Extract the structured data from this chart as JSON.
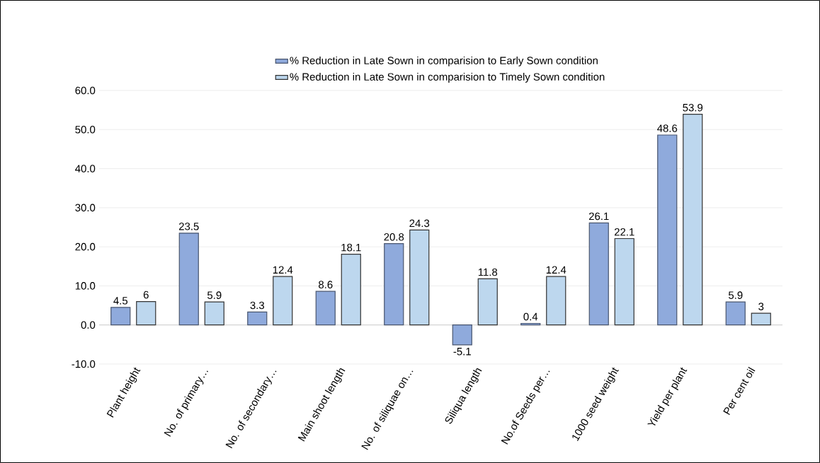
{
  "chart_data": {
    "type": "bar",
    "categories": [
      "Plant height",
      "No. of primary…",
      "No. of secondary…",
      "Main shoot length",
      "No. of siliquae on…",
      "Siliqua length",
      "No.of Seeds per…",
      "1000 seed weight",
      "Yield per plant",
      "Per cent oil"
    ],
    "series": [
      {
        "name": "% Reduction in Late Sown in comparision to Early Sown condition",
        "color": "#8faadc",
        "values": [
          4.5,
          23.5,
          3.3,
          8.6,
          20.8,
          -5.1,
          0.4,
          26.1,
          48.6,
          5.9
        ],
        "value_labels": [
          "4.5",
          "23.5",
          "3.3",
          "8.6",
          "20.8",
          "-5.1",
          "0.4",
          "26.1",
          "48.6",
          "5.9"
        ]
      },
      {
        "name": "% Reduction in Late Sown in comparision to Timely Sown condition",
        "color": "#bdd7ee",
        "values": [
          6,
          5.9,
          12.4,
          18.1,
          24.3,
          11.8,
          12.4,
          22.1,
          53.9,
          3
        ],
        "value_labels": [
          "6",
          "5.9",
          "12.4",
          "18.1",
          "24.3",
          "11.8",
          "12.4",
          "22.1",
          "53.9",
          "3"
        ]
      }
    ],
    "ylim": [
      -10,
      60
    ],
    "yticks": [
      {
        "value": -10,
        "label": "-10.0"
      },
      {
        "value": 0,
        "label": "0.0"
      },
      {
        "value": 10,
        "label": "10.0"
      },
      {
        "value": 20,
        "label": "20.0"
      },
      {
        "value": 30,
        "label": "30.0"
      },
      {
        "value": 40,
        "label": "40.0"
      },
      {
        "value": 50,
        "label": "50.0"
      },
      {
        "value": 60,
        "label": "60.0"
      }
    ],
    "grid": "y",
    "legend": "top"
  }
}
